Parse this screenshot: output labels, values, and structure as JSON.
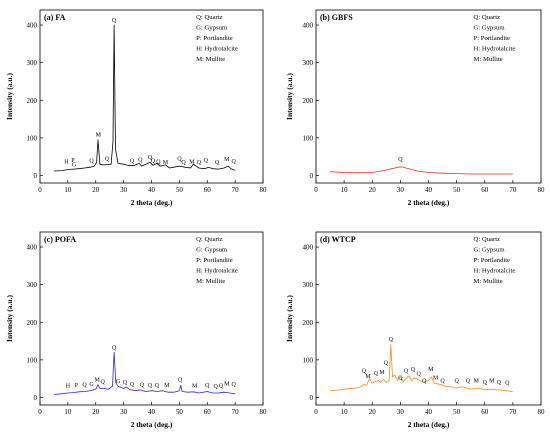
{
  "chart_data": [
    {
      "type": "line",
      "title": "(a) FA",
      "xlabel": "2 theta (deg.)",
      "ylabel": "Intensity (a.u.)",
      "xlim": [
        0,
        80
      ],
      "ylim": [
        -20,
        440
      ],
      "xticks": [
        0,
        10,
        20,
        30,
        40,
        50,
        60,
        70,
        80
      ],
      "yticks": [
        0,
        100,
        200,
        300,
        400
      ],
      "color": "#000000",
      "legend": [
        "Q: Quartz",
        "G: Gypsum",
        "P: Portlandite",
        "H: Hydrotalcite",
        "M: Mullite"
      ],
      "series": [
        {
          "x": [
            5,
            8,
            10,
            12,
            14,
            16,
            18,
            19.5,
            20.3,
            20.8,
            21.5,
            22.5,
            24,
            25.5,
            26.2,
            26.6,
            27.1,
            28,
            30,
            32,
            34,
            35.5,
            36.5,
            38,
            39.5,
            40.5,
            42,
            43,
            45,
            46.5,
            48,
            50,
            52,
            54,
            55,
            57,
            59,
            60.5,
            62,
            64,
            66,
            67.5,
            68.5,
            70
          ],
          "y": [
            12,
            13,
            16,
            17,
            18,
            20,
            22,
            25,
            35,
            95,
            30,
            28,
            29,
            30,
            90,
            400,
            70,
            32,
            30,
            26,
            27,
            32,
            25,
            30,
            35,
            27,
            32,
            25,
            28,
            20,
            22,
            25,
            22,
            20,
            30,
            20,
            18,
            22,
            18,
            17,
            20,
            25,
            18,
            14
          ]
        }
      ],
      "peak_labels": [
        {
          "text": "Q",
          "x": 26.6,
          "y": 408
        },
        {
          "text": "M",
          "x": 20.9,
          "y": 103
        },
        {
          "text": "Q",
          "x": 18.5,
          "y": 35
        },
        {
          "text": "Q",
          "x": 24,
          "y": 40
        },
        {
          "text": "H",
          "x": 9.5,
          "y": 32
        },
        {
          "text": "P",
          "x": 11.8,
          "y": 36
        },
        {
          "text": "G",
          "x": 12.2,
          "y": 24
        },
        {
          "text": "Q",
          "x": 33,
          "y": 35
        },
        {
          "text": "Q",
          "x": 36,
          "y": 37
        },
        {
          "text": "Q",
          "x": 39.5,
          "y": 44
        },
        {
          "text": "Q",
          "x": 40.5,
          "y": 34
        },
        {
          "text": "Q",
          "x": 42.5,
          "y": 32
        },
        {
          "text": "M",
          "x": 45,
          "y": 30
        },
        {
          "text": "Q",
          "x": 50,
          "y": 40
        },
        {
          "text": "Q",
          "x": 51.5,
          "y": 30
        },
        {
          "text": "M",
          "x": 54.5,
          "y": 32
        },
        {
          "text": "Q",
          "x": 57,
          "y": 30
        },
        {
          "text": "Q",
          "x": 59.5,
          "y": 36
        },
        {
          "text": "Q",
          "x": 63.5,
          "y": 30
        },
        {
          "text": "M",
          "x": 67,
          "y": 39
        },
        {
          "text": "Q",
          "x": 69.5,
          "y": 33
        }
      ]
    },
    {
      "type": "line",
      "title": "(b) GBFS",
      "xlabel": "2 theta (deg.)",
      "ylabel": "Intensity (a.u.)",
      "xlim": [
        0,
        80
      ],
      "ylim": [
        -20,
        440
      ],
      "xticks": [
        0,
        10,
        20,
        30,
        40,
        50,
        60,
        70,
        80
      ],
      "yticks": [
        0,
        100,
        200,
        300,
        400
      ],
      "color": "#e8302a",
      "legend": [
        "Q: Quartz",
        "G: Gypsum",
        "P: Portlandite",
        "H: Hydrotalcite",
        "M: Mullite"
      ],
      "series": [
        {
          "x": [
            5,
            10,
            15,
            20,
            24,
            27,
            29,
            30,
            31,
            33,
            36,
            40,
            45,
            50,
            55,
            60,
            65,
            70
          ],
          "y": [
            10,
            8,
            7,
            8,
            13,
            18,
            22,
            23,
            22,
            18,
            12,
            8,
            6,
            5,
            4,
            4,
            4,
            4
          ]
        }
      ],
      "peak_labels": [
        {
          "text": "Q",
          "x": 30,
          "y": 38
        }
      ]
    },
    {
      "type": "line",
      "title": "(c) POFA",
      "xlabel": "2 theta (deg.)",
      "ylabel": "Intensity (a.u.)",
      "xlim": [
        0,
        80
      ],
      "ylim": [
        -20,
        440
      ],
      "xticks": [
        0,
        10,
        20,
        30,
        40,
        50,
        60,
        70,
        80
      ],
      "yticks": [
        0,
        100,
        200,
        300,
        400
      ],
      "color": "#2a2ad8",
      "legend": [
        "Q: Quartz",
        "G: Gypsum",
        "P: Portlandite",
        "H: Hydrotalcite",
        "M: Mullite"
      ],
      "series": [
        {
          "x": [
            5,
            8,
            10,
            12,
            14,
            16,
            18,
            20,
            20.8,
            21.5,
            23,
            24.5,
            26,
            26.6,
            27.2,
            28,
            30,
            31,
            32,
            34,
            36,
            38,
            40,
            42,
            44,
            46,
            48,
            50,
            50.5,
            51,
            53,
            55,
            57,
            60,
            62,
            64,
            66,
            68,
            70
          ],
          "y": [
            8,
            10,
            12,
            13,
            15,
            16,
            18,
            22,
            34,
            24,
            24,
            22,
            30,
            120,
            40,
            30,
            24,
            28,
            22,
            18,
            20,
            16,
            18,
            16,
            18,
            14,
            14,
            18,
            32,
            16,
            14,
            15,
            12,
            16,
            12,
            12,
            14,
            12,
            10
          ]
        }
      ],
      "peak_labels": [
        {
          "text": "Q",
          "x": 26.6,
          "y": 128
        },
        {
          "text": "M",
          "x": 20.5,
          "y": 43
        },
        {
          "text": "H",
          "x": 10,
          "y": 27
        },
        {
          "text": "P",
          "x": 13,
          "y": 28
        },
        {
          "text": "Q",
          "x": 16,
          "y": 29
        },
        {
          "text": "G",
          "x": 18.5,
          "y": 31
        },
        {
          "text": "Q",
          "x": 22.5,
          "y": 37
        },
        {
          "text": "G",
          "x": 28,
          "y": 38
        },
        {
          "text": "Q",
          "x": 30.5,
          "y": 36
        },
        {
          "text": "Q",
          "x": 33,
          "y": 30
        },
        {
          "text": "Q",
          "x": 36.5,
          "y": 29
        },
        {
          "text": "Q",
          "x": 39.5,
          "y": 28
        },
        {
          "text": "Q",
          "x": 42,
          "y": 28
        },
        {
          "text": "M",
          "x": 45.5,
          "y": 28
        },
        {
          "text": "Q",
          "x": 50.3,
          "y": 43
        },
        {
          "text": "M",
          "x": 55.5,
          "y": 26
        },
        {
          "text": "Q",
          "x": 60,
          "y": 28
        },
        {
          "text": "Q",
          "x": 63,
          "y": 25
        },
        {
          "text": "Q",
          "x": 65,
          "y": 27
        },
        {
          "text": "M",
          "x": 67,
          "y": 32
        },
        {
          "text": "Q",
          "x": 69.5,
          "y": 30
        }
      ]
    },
    {
      "type": "line",
      "title": "(d) WTCP",
      "xlabel": "2 theta (deg.)",
      "ylabel": "Intensity (a.u.)",
      "xlim": [
        0,
        80
      ],
      "ylim": [
        -20,
        440
      ],
      "xticks": [
        0,
        10,
        20,
        30,
        40,
        50,
        60,
        70,
        80
      ],
      "yticks": [
        0,
        100,
        200,
        300,
        400
      ],
      "color": "#f28c1e",
      "legend": [
        "Q: Quartz",
        "G: Gypsum",
        "P: Portlandite",
        "H: Hydrotalcite",
        "M: Mullite"
      ],
      "series": [
        {
          "x": [
            5,
            8,
            10,
            12,
            14,
            16,
            17,
            18,
            19,
            20,
            21,
            22,
            23,
            24,
            25,
            26,
            26.6,
            27.2,
            28,
            29,
            30,
            31,
            32,
            33,
            34,
            35,
            36,
            38,
            40,
            41,
            42,
            44,
            46,
            48,
            50,
            52,
            55,
            58,
            60,
            62,
            65,
            68,
            70
          ],
          "y": [
            18,
            20,
            22,
            24,
            25,
            28,
            35,
            32,
            50,
            38,
            42,
            45,
            40,
            48,
            40,
            45,
            140,
            55,
            60,
            45,
            55,
            42,
            50,
            58,
            45,
            52,
            48,
            40,
            45,
            55,
            38,
            35,
            30,
            28,
            25,
            28,
            22,
            25,
            20,
            22,
            20,
            18,
            15
          ]
        }
      ],
      "peak_labels": [
        {
          "text": "Q",
          "x": 26.6,
          "y": 150
        },
        {
          "text": "Q",
          "x": 17,
          "y": 67
        },
        {
          "text": "M",
          "x": 18.5,
          "y": 52
        },
        {
          "text": "Q",
          "x": 21.3,
          "y": 60
        },
        {
          "text": "M",
          "x": 23.5,
          "y": 62
        },
        {
          "text": "Q",
          "x": 24.8,
          "y": 88
        },
        {
          "text": "Q",
          "x": 30,
          "y": 48
        },
        {
          "text": "Q",
          "x": 32,
          "y": 66
        },
        {
          "text": "Q",
          "x": 34.5,
          "y": 70
        },
        {
          "text": "Q",
          "x": 36.5,
          "y": 58
        },
        {
          "text": "Q",
          "x": 38.5,
          "y": 40
        },
        {
          "text": "M",
          "x": 40.8,
          "y": 71
        },
        {
          "text": "M",
          "x": 42.5,
          "y": 48
        },
        {
          "text": "Q",
          "x": 45,
          "y": 40
        },
        {
          "text": "Q",
          "x": 50,
          "y": 40
        },
        {
          "text": "Q",
          "x": 54,
          "y": 40
        },
        {
          "text": "M",
          "x": 57,
          "y": 40
        },
        {
          "text": "Q",
          "x": 60,
          "y": 36
        },
        {
          "text": "M",
          "x": 62.5,
          "y": 40
        },
        {
          "text": "Q",
          "x": 65,
          "y": 36
        },
        {
          "text": "Q",
          "x": 68,
          "y": 34
        }
      ]
    }
  ]
}
